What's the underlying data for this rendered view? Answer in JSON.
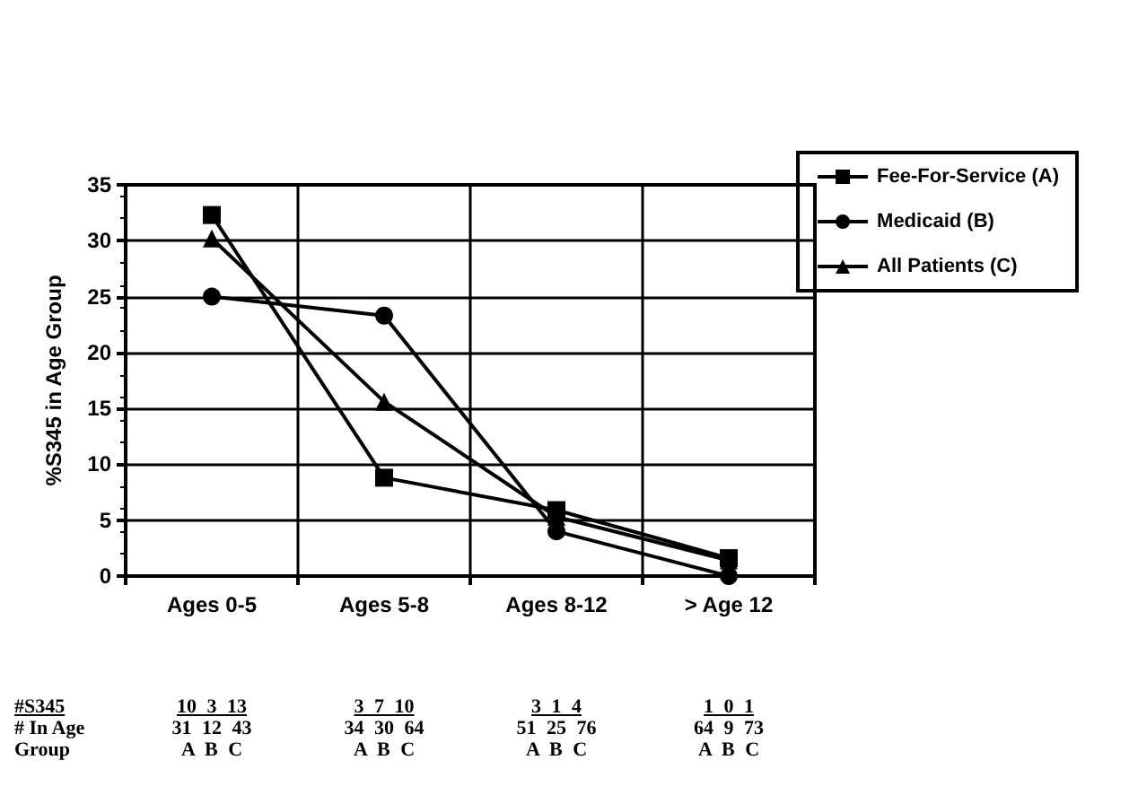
{
  "chart_data": {
    "type": "line",
    "ylabel": "%S345 in Age Group",
    "categories": [
      "Ages 0-5",
      "Ages 5-8",
      "Ages 8-12",
      "> Age 12"
    ],
    "series": [
      {
        "name": "Fee-For-Service (A)",
        "color": "#000000",
        "marker": "square",
        "values": [
          32.3,
          8.8,
          5.9,
          1.6
        ]
      },
      {
        "name": "Medicaid (B)",
        "color": "#000000",
        "marker": "circle",
        "values": [
          25,
          23.3,
          4,
          0
        ]
      },
      {
        "name": "All Patients (C)",
        "color": "#000000",
        "marker": "triangle",
        "values": [
          30.2,
          15.6,
          5.3,
          1.4
        ]
      }
    ],
    "ylim": [
      0,
      35
    ],
    "yticks": [
      0,
      5,
      10,
      15,
      20,
      25,
      30,
      35
    ],
    "grid": true,
    "legend": "top right",
    "line_style": "solid",
    "annotations": [
      "#S345",
      "# In Age",
      "Group",
      "10 3 13",
      "31 12 43",
      "A B C",
      "3 7 10",
      "34 30 64",
      "A B C",
      "3 1 4",
      "51 25 76",
      "A B C",
      "1 0 1",
      "64 9 73",
      "A B C"
    ]
  }
}
